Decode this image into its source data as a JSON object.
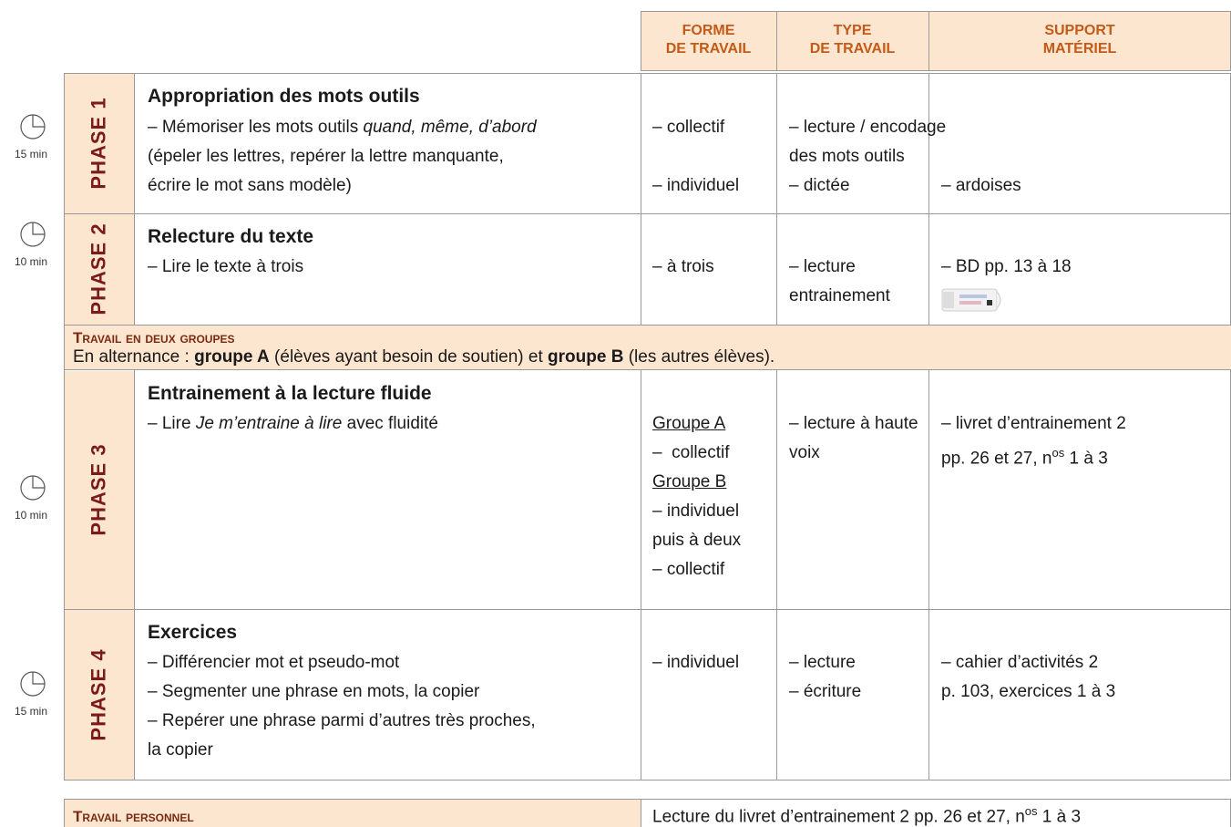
{
  "header": {
    "forme": [
      "FORME",
      "DE TRAVAIL"
    ],
    "type": [
      "TYPE",
      "DE TRAVAIL"
    ],
    "support": [
      "SUPPORT",
      "MATÉRIEL"
    ]
  },
  "phases": [
    {
      "time": "15 min",
      "label": "PHASE 1",
      "title": "Appropriation des mots outils",
      "content": [
        [
          "– Mémoriser les mots outils ",
          "quand, même, d’abord"
        ],
        [
          "(épeler les lettres, repérer la lettre manquante,"
        ],
        [
          "écrire le mot sans modèle)"
        ]
      ],
      "forme": [
        "– collectif",
        "– individuel"
      ],
      "type": [
        "– lecture / encodage",
        "des mots outils",
        "– dictée"
      ],
      "support": [
        "– ardoises"
      ]
    },
    {
      "time": "10 min",
      "label": "PHASE 2",
      "title": "Relecture du texte",
      "content": [
        [
          "– Lire le texte à trois"
        ]
      ],
      "forme": [
        "– à trois"
      ],
      "type": [
        "– lecture",
        "entrainement"
      ],
      "support": [
        "– BD pp. 13 à 18"
      ]
    },
    {
      "time": "10 min",
      "label": "PHASE 3",
      "title": "Entrainement à la lecture fluide",
      "content": [
        [
          "– Lire ",
          "Je m’entraine à lire",
          " avec fluidité"
        ]
      ],
      "forme": [
        "Groupe A",
        "–  collectif",
        "Groupe B",
        "– individuel",
        "puis à deux",
        "– collectif"
      ],
      "type": [
        "– lecture à haute",
        "voix"
      ],
      "support": [
        [
          "– livret d’entrainement 2"
        ],
        [
          "pp. 26 et 27, n",
          "os",
          " 1 à 3"
        ]
      ]
    },
    {
      "time": "15 min",
      "label": "PHASE 4",
      "title": "Exercices",
      "content": [
        [
          "– Différencier mot et pseudo-mot"
        ],
        [
          "– Segmenter une phrase en mots, la copier"
        ],
        [
          "– Repérer une phrase parmi d’autres très proches,"
        ],
        [
          "la copier"
        ]
      ],
      "forme": [
        "– individuel"
      ],
      "type": [
        "– lecture",
        "– écriture"
      ],
      "support": [
        "– cahier d’activités 2",
        "p. 103, exercices 1 à 3"
      ]
    }
  ],
  "groups": {
    "title": "Travail en deux groupes",
    "text": [
      "En alternance : ",
      "groupe A",
      " (élèves ayant besoin de soutien) et ",
      "groupe B",
      " (les autres élèves)."
    ]
  },
  "footer": {
    "title": "Travail personnel",
    "text": [
      "Lecture du livret d’entrainement 2 pp. 26 et 27, n",
      "os",
      " 1 à 3"
    ]
  }
}
